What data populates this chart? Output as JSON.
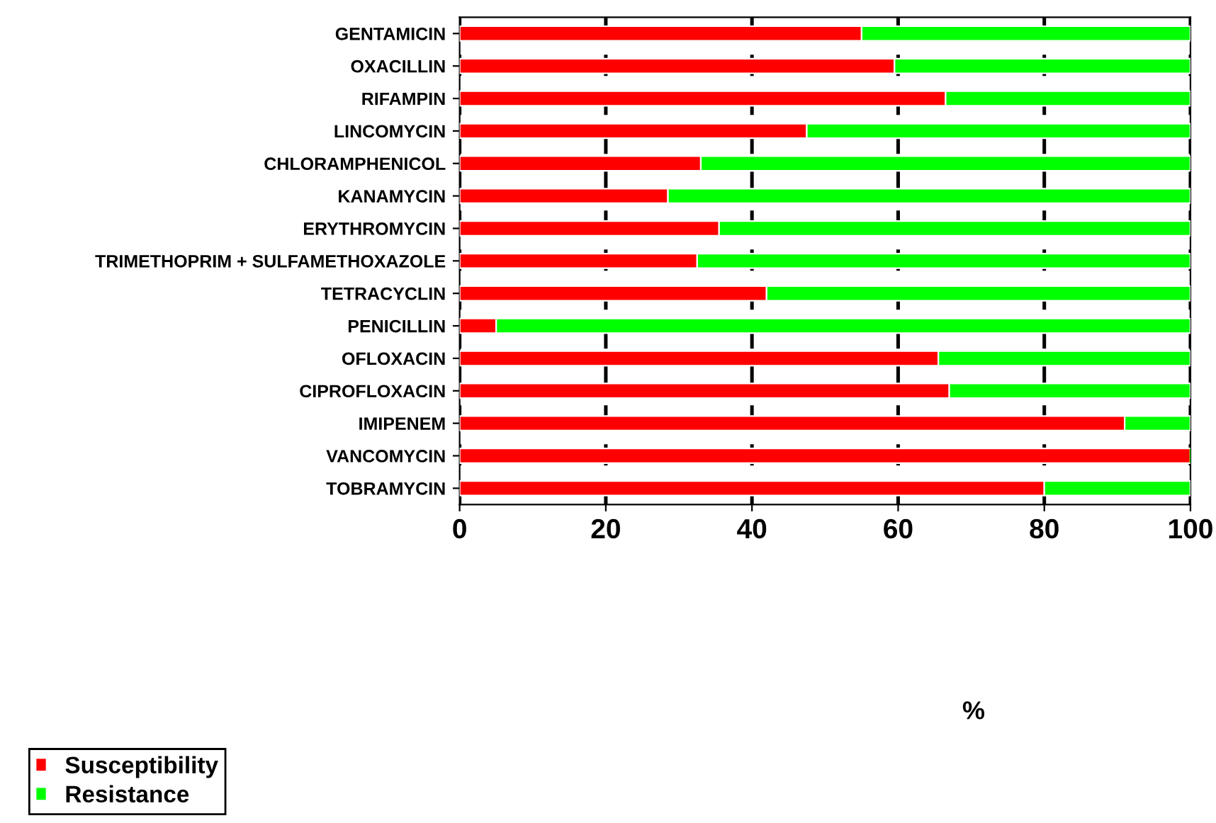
{
  "chart_data": {
    "type": "bar",
    "orientation": "horizontal",
    "stacked": true,
    "annotations": [
      "%"
    ],
    "categories": [
      "GENTAMICIN",
      "OXACILLIN",
      "RIFAMPIN",
      "LINCOMYCIN",
      "CHLORAMPHENICOL",
      "KANAMYCIN",
      "ERYTHROMYCIN",
      "TRIMETHOPRIM + SULFAMETHOXAZOLE",
      "TETRACYCLIN",
      "PENICILLIN",
      "OFLOXACIN",
      "CIPROFLOXACIN",
      "IMIPENEM",
      "VANCOMYCIN",
      "TOBRAMYCIN"
    ],
    "series": [
      {
        "name": "Susceptibility",
        "color": "#ff0000",
        "values": [
          55,
          59.5,
          66.5,
          47.5,
          33,
          28.5,
          35.5,
          32.5,
          42,
          5,
          65.5,
          67,
          91,
          100,
          80
        ]
      },
      {
        "name": "Resistance",
        "color": "#00ff00",
        "values": [
          45,
          40.5,
          33.5,
          52.5,
          67,
          71.5,
          64.5,
          67.5,
          58,
          95,
          34.5,
          33,
          9,
          0,
          20
        ]
      }
    ],
    "xlim": [
      0,
      100
    ],
    "xticks": [
      0,
      20,
      40,
      60,
      80,
      100
    ],
    "grid": "x",
    "legend": "bottom left"
  }
}
